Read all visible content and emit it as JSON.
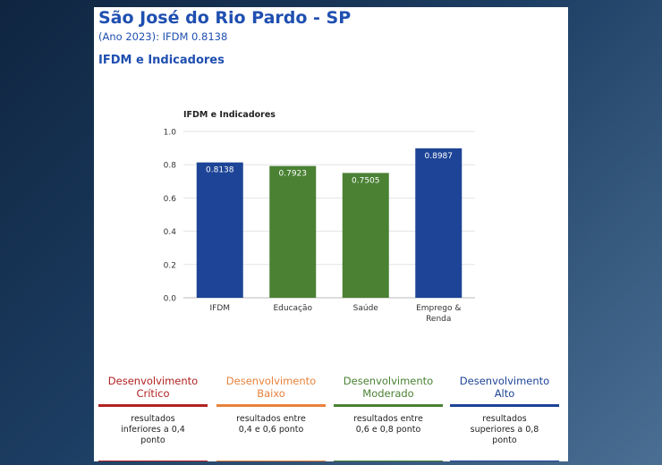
{
  "header": {
    "title": "São José do Rio Pardo - SP",
    "subtitle": "(Ano 2023): IFDM 0.8138",
    "section_title": "IFDM e Indicadores"
  },
  "chart_data": {
    "type": "bar",
    "title": "IFDM e Indicadores",
    "categories": [
      "IFDM",
      "Educação",
      "Saúde",
      "Emprego & Renda"
    ],
    "values": [
      0.8138,
      0.7923,
      0.7505,
      0.8987
    ],
    "value_labels": [
      "0.8138",
      "0.7923",
      "0.7505",
      "0.8987"
    ],
    "bar_colors": [
      "#1d4496",
      "#4a8133",
      "#4a8133",
      "#1d4496"
    ],
    "ylim": [
      0,
      1.0
    ],
    "yticks": [
      "0.0",
      "0.2",
      "0.4",
      "0.6",
      "0.8",
      "1.0"
    ],
    "ytick_values": [
      0,
      0.2,
      0.4,
      0.6,
      0.8,
      1.0
    ],
    "grid": true,
    "xlabel": "",
    "ylabel": ""
  },
  "legend": {
    "categories": [
      {
        "title_line1": "Desenvolvimento",
        "title_line2": "Crítico",
        "description": "resultados inferiores a 0,4 ponto",
        "color": "#b22222"
      },
      {
        "title_line1": "Desenvolvimento",
        "title_line2": "Baixo",
        "description": "resultados entre 0,4 e 0,6 ponto",
        "color": "#e8823c"
      },
      {
        "title_line1": "Desenvolvimento",
        "title_line2": "Moderado",
        "description": "resultados entre 0,6 e 0,8 ponto",
        "color": "#4a8133"
      },
      {
        "title_line1": "Desenvolvimento",
        "title_line2": "Alto",
        "description": "resultados superiores a 0,8 ponto",
        "color": "#1d4496"
      }
    ]
  }
}
